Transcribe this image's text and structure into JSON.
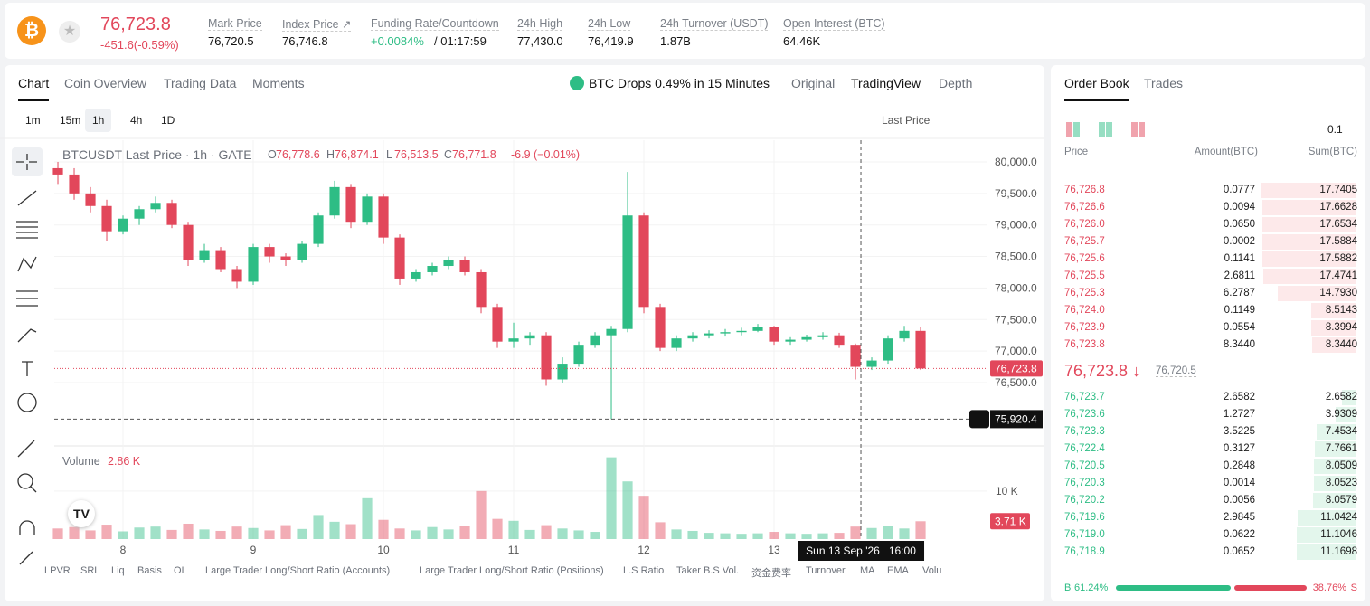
{
  "header": {
    "price": "76,723.8",
    "change": "-451.6(-0.59%)",
    "stats": [
      {
        "label": "Mark Price",
        "value": "76,720.5"
      },
      {
        "label": "Index Price ↗",
        "value": "76,746.8"
      },
      {
        "label": "Funding Rate/Countdown",
        "value": "+0.0084%",
        "extra": "/ 01:17:59"
      },
      {
        "label": "24h High",
        "value": "77,430.0"
      },
      {
        "label": "24h Low",
        "value": "76,419.9"
      },
      {
        "label": "24h Turnover (USDT)",
        "value": "1.87B"
      },
      {
        "label": "Open Interest (BTC)",
        "value": "64.46K"
      }
    ]
  },
  "chart_tabs": [
    "Chart",
    "Coin Overview",
    "Trading Data",
    "Moments"
  ],
  "chart_alert": "BTC Drops 0.49% in 15 Minutes",
  "view_tabs": [
    "Original",
    "TradingView",
    "Depth"
  ],
  "intervals": [
    "1m",
    "15m",
    "1h",
    "4h",
    "1D"
  ],
  "price_source": "Last Price",
  "legend": {
    "symbol": "BTCUSDT Last Price · 1h · GATE",
    "o": "O",
    "o_value": "76,778.6",
    "h": "H",
    "h_value": "76,874.1",
    "l": "L",
    "l_value": "76,513.5",
    "c": "C",
    "c_value": "76,771.8",
    "change": "-6.9 (−0.01%)"
  },
  "volume_legend": {
    "name": "Volume",
    "value": "2.86 K"
  },
  "chart_data": {
    "type": "candlestick",
    "x": [
      -12,
      -9,
      -6,
      -3,
      0,
      3,
      6,
      9,
      12,
      15,
      18,
      21,
      24,
      27,
      30,
      33,
      36,
      39,
      42,
      45,
      48,
      51,
      54,
      57,
      60,
      63,
      66,
      69,
      72,
      75,
      78,
      81,
      84,
      87,
      90,
      93,
      96,
      99,
      102,
      105,
      108,
      111,
      114,
      117,
      120,
      123,
      126,
      129,
      132,
      135,
      138,
      141,
      144,
      147
    ],
    "open": [
      79900,
      79800,
      79500,
      79300,
      78900,
      79100,
      79250,
      79350,
      79000,
      78450,
      78600,
      78300,
      78100,
      78650,
      78500,
      78450,
      78700,
      79150,
      79600,
      79050,
      79450,
      78800,
      78150,
      78250,
      78350,
      78450,
      78250,
      77700,
      77150,
      77200,
      77250,
      76550,
      76800,
      77100,
      77250,
      77350,
      79150,
      77700,
      77050,
      77200,
      77250,
      77280,
      77300,
      77320,
      77380,
      77150,
      77180,
      77220,
      77250,
      77100,
      76750,
      76850,
      77200,
      77320
    ],
    "high": [
      80000,
      79900,
      79600,
      79400,
      79150,
      79300,
      79450,
      79400,
      79050,
      78700,
      78650,
      78350,
      78700,
      78700,
      78550,
      78750,
      79200,
      79700,
      79650,
      79500,
      79500,
      78850,
      78300,
      78400,
      78500,
      78500,
      78300,
      77750,
      77450,
      77300,
      77300,
      76900,
      77150,
      77300,
      77400,
      79840,
      79200,
      77750,
      77250,
      77300,
      77330,
      77350,
      77370,
      77430,
      77400,
      77220,
      77260,
      77300,
      77290,
      77120,
      76900,
      77250,
      77400,
      77380
    ],
    "low": [
      79650,
      79400,
      79200,
      78750,
      78850,
      79000,
      79200,
      78950,
      78350,
      78400,
      78250,
      78000,
      78050,
      78400,
      78350,
      78400,
      78650,
      79100,
      78950,
      79000,
      78700,
      78050,
      78100,
      78200,
      78300,
      78200,
      77600,
      77050,
      77050,
      77100,
      76450,
      76500,
      76750,
      77050,
      75920,
      77300,
      77600,
      77000,
      77000,
      77150,
      77200,
      77230,
      77250,
      77300,
      77100,
      77100,
      77150,
      77180,
      77050,
      76550,
      76700,
      76800,
      77150,
      76700
    ],
    "close": [
      79800,
      79500,
      79300,
      78900,
      79100,
      79250,
      79350,
      79000,
      78450,
      78600,
      78300,
      78100,
      78650,
      78500,
      78450,
      78700,
      79150,
      79600,
      79050,
      79450,
      78800,
      78150,
      78250,
      78350,
      78450,
      78250,
      77700,
      77150,
      77200,
      77250,
      76550,
      76800,
      77100,
      77250,
      77350,
      79150,
      77700,
      77050,
      77200,
      77250,
      77280,
      77300,
      77320,
      77380,
      77150,
      77180,
      77220,
      77250,
      77100,
      76750,
      76850,
      77200,
      77320,
      76723.8
    ],
    "volume": [
      2200,
      2500,
      1800,
      3000,
      1600,
      2400,
      2600,
      1900,
      3200,
      2000,
      1700,
      2600,
      2300,
      1800,
      2900,
      2100,
      5000,
      3600,
      3100,
      8500,
      4000,
      2200,
      1800,
      2500,
      2000,
      2700,
      10000,
      4200,
      3800,
      1900,
      2900,
      2200,
      1800,
      1500,
      17000,
      12000,
      9000,
      3500,
      2000,
      1700,
      1300,
      1200,
      1100,
      1200,
      1500,
      1200,
      1100,
      1200,
      1300,
      2600,
      2300,
      2800,
      2200,
      3710
    ],
    "up_color": "#2ebd85",
    "down_color": "#e2475b",
    "xlim": [
      -12.67,
      159.33
    ],
    "xticks": [
      {
        "value": 0,
        "label": "8"
      },
      {
        "value": 24,
        "label": "9"
      },
      {
        "value": 48,
        "label": "10"
      },
      {
        "value": 72,
        "label": "11"
      },
      {
        "value": 96,
        "label": "12"
      },
      {
        "value": 120,
        "label": "13"
      }
    ],
    "ylim": [
      75510,
      80344
    ],
    "yticks": [
      {
        "value": 76500,
        "label": "76,500.0"
      },
      {
        "value": 77000,
        "label": "77,000.0"
      },
      {
        "value": 77500,
        "label": "77,500.0"
      },
      {
        "value": 78000,
        "label": "78,000.0"
      },
      {
        "value": 78500,
        "label": "78,500.0"
      },
      {
        "value": 79000,
        "label": "79,000.0"
      },
      {
        "value": 79500,
        "label": "79,500.0"
      },
      {
        "value": 80000,
        "label": "80,000.0"
      }
    ],
    "volume_ylim": [
      0,
      19000
    ],
    "volume_yticks": [
      {
        "value": 10000,
        "label": "10 K"
      }
    ],
    "last_price": {
      "value": 76723.8,
      "label": "76,723.8"
    },
    "last_volume": {
      "value": 3710,
      "label": "3.71 K"
    },
    "crosshair": {
      "x": 136,
      "label": "Sun 13 Sep '26   16:00",
      "price": 75920.4,
      "price_label": "75,920.4"
    },
    "grid": true
  },
  "indicators": [
    "LPVR",
    "SRL",
    "Liq",
    "Basis",
    "OI",
    "Large Trader Long/Short Ratio (Accounts)",
    "Large Trader Long/Short Ratio (Positions)",
    "L.S Ratio",
    "Taker B.S Vol.",
    "资金费率",
    "Turnover",
    "MA",
    "EMA",
    "Volu"
  ],
  "order_book": {
    "tabs": [
      "Order Book",
      "Trades"
    ],
    "precision": "0.1",
    "columns": [
      "Price",
      "Amount(BTC)",
      "Sum(BTC)"
    ],
    "asks": [
      [
        "76,726.8",
        "0.0777",
        "17.7405"
      ],
      [
        "76,726.6",
        "0.0094",
        "17.6628"
      ],
      [
        "76,726.0",
        "0.0650",
        "17.6534"
      ],
      [
        "76,725.7",
        "0.0002",
        "17.5884"
      ],
      [
        "76,725.6",
        "0.1141",
        "17.5882"
      ],
      [
        "76,725.5",
        "2.6811",
        "17.4741"
      ],
      [
        "76,725.3",
        "6.2787",
        "14.7930"
      ],
      [
        "76,724.0",
        "0.1149",
        "8.5143"
      ],
      [
        "76,723.9",
        "0.0554",
        "8.3994"
      ],
      [
        "76,723.8",
        "8.3440",
        "8.3440"
      ]
    ],
    "mid_price": "76,723.8 ↓",
    "mark_price": "76,720.5",
    "bids": [
      [
        "76,723.7",
        "2.6582",
        "2.6582"
      ],
      [
        "76,723.6",
        "1.2727",
        "3.9309"
      ],
      [
        "76,723.3",
        "3.5225",
        "7.4534"
      ],
      [
        "76,722.4",
        "0.3127",
        "7.7661"
      ],
      [
        "76,720.5",
        "0.2848",
        "8.0509"
      ],
      [
        "76,720.3",
        "0.0014",
        "8.0523"
      ],
      [
        "76,720.2",
        "0.0056",
        "8.0579"
      ],
      [
        "76,719.6",
        "2.9845",
        "11.0424"
      ],
      [
        "76,719.0",
        "0.0622",
        "11.1046"
      ],
      [
        "76,718.9",
        "0.0652",
        "11.1698"
      ]
    ],
    "buy_letter": "B",
    "buy_ratio": {
      "value": 61.24,
      "label": "61.24%"
    },
    "sell_ratio": {
      "value": 38.76,
      "label": "38.76%"
    },
    "sell_letter": "S"
  }
}
